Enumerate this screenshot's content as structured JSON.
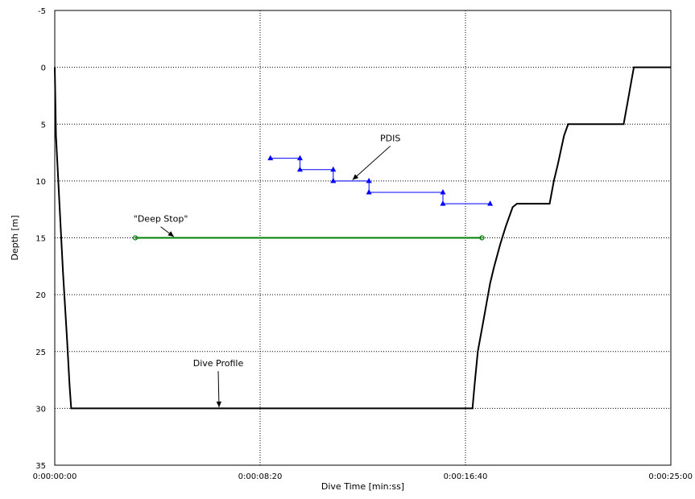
{
  "chart_data": {
    "type": "line",
    "title": "",
    "xlabel": "Dive Time [min:ss]",
    "ylabel": "Depth [m]",
    "x_unit": "seconds",
    "xlim": [
      0,
      1500
    ],
    "ylim": [
      -5,
      35
    ],
    "y_inverted": true,
    "grid": true,
    "x_ticks": [
      {
        "value": 0,
        "label": "0:00:00:00"
      },
      {
        "value": 500,
        "label": "0:00:08:20"
      },
      {
        "value": 1000,
        "label": "0:00:16:40"
      },
      {
        "value": 1500,
        "label": "0:00:25:00"
      }
    ],
    "y_ticks": [
      {
        "value": -5,
        "label": "-5"
      },
      {
        "value": 0,
        "label": "0"
      },
      {
        "value": 5,
        "label": "5"
      },
      {
        "value": 10,
        "label": "10"
      },
      {
        "value": 15,
        "label": "15"
      },
      {
        "value": 20,
        "label": "20"
      },
      {
        "value": 25,
        "label": "25"
      },
      {
        "value": 30,
        "label": "30"
      },
      {
        "value": 35,
        "label": "35"
      }
    ],
    "series": [
      {
        "color": "#000000",
        "marker": "none",
        "points": [
          [
            0,
            0
          ],
          [
            3,
            6
          ],
          [
            10,
            11
          ],
          [
            20,
            18
          ],
          [
            30,
            24
          ],
          [
            36,
            28
          ],
          [
            40,
            30
          ],
          [
            1017,
            30
          ],
          [
            1022,
            28
          ],
          [
            1030,
            25
          ],
          [
            1045,
            22
          ],
          [
            1060,
            19
          ],
          [
            1070,
            17.5
          ],
          [
            1085,
            15.5
          ],
          [
            1098,
            14
          ],
          [
            1115,
            12.3
          ],
          [
            1125,
            12
          ],
          [
            1205,
            12
          ],
          [
            1215,
            10
          ],
          [
            1225,
            8.5
          ],
          [
            1240,
            6
          ],
          [
            1250,
            5
          ],
          [
            1385,
            5
          ],
          [
            1395,
            3
          ],
          [
            1405,
            1
          ],
          [
            1410,
            0
          ],
          [
            1500,
            0
          ]
        ]
      },
      {
        "color": "#0000ff",
        "marker": "triangle",
        "points": [
          [
            525,
            8
          ],
          [
            597,
            8
          ],
          [
            597,
            9
          ],
          [
            678,
            9
          ],
          [
            678,
            10
          ],
          [
            765,
            10
          ],
          [
            765,
            11
          ],
          [
            945,
            11
          ],
          [
            945,
            12
          ],
          [
            1060,
            12
          ]
        ]
      },
      {
        "color": "#008000",
        "marker": "circle",
        "points": [
          [
            196,
            15
          ],
          [
            1040,
            15
          ]
        ]
      }
    ],
    "annotations": [
      {
        "text": "Dive Profile",
        "x": 398,
        "y": 26.3,
        "arrow_to": [
          400,
          29.9
        ]
      },
      {
        "text": "\"Deep Stop\"",
        "x": 258,
        "y": 13.6,
        "arrow_to": [
          290,
          14.9
        ]
      },
      {
        "text": "PDIS",
        "x": 817,
        "y": 6.5,
        "arrow_to": [
          725,
          9.9
        ]
      }
    ]
  }
}
